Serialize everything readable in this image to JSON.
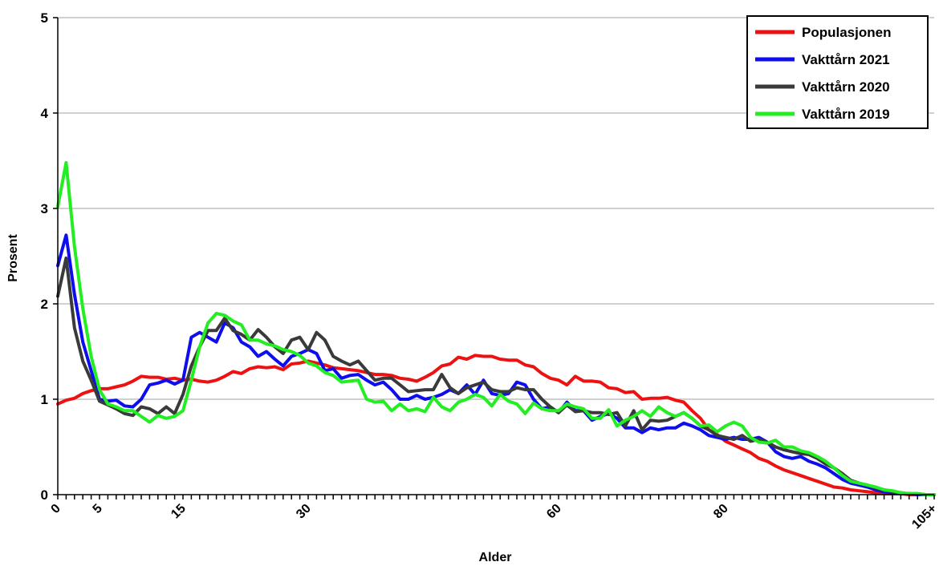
{
  "chart_data": {
    "type": "line",
    "title": "",
    "xlabel": "Alder",
    "ylabel": "Prosent",
    "ylim": [
      0,
      5
    ],
    "yticks": [
      "0",
      "1",
      "2",
      "3",
      "4",
      "5"
    ],
    "xtick_labels": [
      {
        "age": 0,
        "label": "0"
      },
      {
        "age": 5,
        "label": "5"
      },
      {
        "age": 15,
        "label": "15"
      },
      {
        "age": 30,
        "label": "30"
      },
      {
        "age": 60,
        "label": "60"
      },
      {
        "age": 80,
        "label": "80"
      },
      {
        "age": 105,
        "label": "105+"
      }
    ],
    "grid": "horizontal",
    "legend_position": "top-right",
    "x": [
      0,
      1,
      2,
      3,
      4,
      5,
      6,
      7,
      8,
      9,
      10,
      11,
      12,
      13,
      14,
      15,
      16,
      17,
      18,
      19,
      20,
      21,
      22,
      23,
      24,
      25,
      26,
      27,
      28,
      29,
      30,
      31,
      32,
      33,
      34,
      35,
      36,
      37,
      38,
      39,
      40,
      41,
      42,
      43,
      44,
      45,
      46,
      47,
      48,
      49,
      50,
      51,
      52,
      53,
      54,
      55,
      56,
      57,
      58,
      59,
      60,
      61,
      62,
      63,
      64,
      65,
      66,
      67,
      68,
      69,
      70,
      71,
      72,
      73,
      74,
      75,
      76,
      77,
      78,
      79,
      80,
      81,
      82,
      83,
      84,
      85,
      86,
      87,
      88,
      89,
      90,
      91,
      92,
      93,
      94,
      95,
      96,
      97,
      98,
      99,
      100,
      101,
      102,
      103,
      104,
      105
    ],
    "series": [
      {
        "name": "Populasjonen",
        "color": "#ee1111",
        "values": [
          0.95,
          0.99,
          1.01,
          1.06,
          1.09,
          1.11,
          1.11,
          1.13,
          1.15,
          1.19,
          1.24,
          1.23,
          1.23,
          1.21,
          1.22,
          1.2,
          1.21,
          1.19,
          1.18,
          1.2,
          1.24,
          1.29,
          1.27,
          1.32,
          1.34,
          1.33,
          1.34,
          1.31,
          1.37,
          1.38,
          1.4,
          1.38,
          1.36,
          1.33,
          1.32,
          1.31,
          1.3,
          1.28,
          1.26,
          1.26,
          1.25,
          1.22,
          1.21,
          1.19,
          1.23,
          1.28,
          1.35,
          1.37,
          1.44,
          1.42,
          1.46,
          1.45,
          1.45,
          1.42,
          1.41,
          1.41,
          1.36,
          1.34,
          1.27,
          1.22,
          1.2,
          1.15,
          1.24,
          1.19,
          1.19,
          1.18,
          1.12,
          1.11,
          1.07,
          1.08,
          1.0,
          1.01,
          1.01,
          1.02,
          0.99,
          0.97,
          0.88,
          0.8,
          0.68,
          0.63,
          0.56,
          0.52,
          0.48,
          0.44,
          0.38,
          0.35,
          0.3,
          0.26,
          0.23,
          0.2,
          0.17,
          0.14,
          0.11,
          0.08,
          0.07,
          0.05,
          0.04,
          0.03,
          0.02,
          0.01,
          0.01,
          0.01,
          0.0,
          0.0,
          0.0,
          0.0
        ]
      },
      {
        "name": "Vakttårn 2021",
        "color": "#0d0dee",
        "values": [
          2.4,
          2.72,
          2.1,
          1.6,
          1.3,
          1.0,
          0.98,
          0.99,
          0.93,
          0.92,
          1.0,
          1.15,
          1.17,
          1.2,
          1.16,
          1.2,
          1.65,
          1.7,
          1.65,
          1.6,
          1.8,
          1.75,
          1.6,
          1.55,
          1.45,
          1.5,
          1.42,
          1.35,
          1.45,
          1.48,
          1.52,
          1.48,
          1.3,
          1.32,
          1.22,
          1.25,
          1.26,
          1.2,
          1.15,
          1.18,
          1.1,
          1.0,
          1.0,
          1.04,
          1.0,
          1.02,
          1.05,
          1.1,
          1.06,
          1.15,
          1.05,
          1.2,
          1.06,
          1.04,
          1.06,
          1.18,
          1.15,
          1.0,
          0.9,
          0.92,
          0.86,
          0.97,
          0.88,
          0.88,
          0.78,
          0.82,
          0.85,
          0.8,
          0.7,
          0.7,
          0.65,
          0.7,
          0.68,
          0.7,
          0.7,
          0.75,
          0.72,
          0.68,
          0.62,
          0.6,
          0.58,
          0.6,
          0.58,
          0.58,
          0.6,
          0.55,
          0.45,
          0.4,
          0.38,
          0.4,
          0.35,
          0.32,
          0.28,
          0.22,
          0.16,
          0.12,
          0.1,
          0.08,
          0.05,
          0.03,
          0.02,
          0.01,
          0.01,
          0.0,
          0.0,
          0.0
        ]
      },
      {
        "name": "Vakttårn 2020",
        "color": "#3a3a3a",
        "values": [
          2.08,
          2.48,
          1.75,
          1.4,
          1.2,
          0.98,
          0.94,
          0.9,
          0.85,
          0.83,
          0.92,
          0.9,
          0.85,
          0.92,
          0.85,
          1.05,
          1.35,
          1.55,
          1.72,
          1.72,
          1.85,
          1.72,
          1.68,
          1.62,
          1.73,
          1.65,
          1.55,
          1.48,
          1.62,
          1.65,
          1.52,
          1.7,
          1.62,
          1.45,
          1.4,
          1.36,
          1.4,
          1.3,
          1.2,
          1.22,
          1.22,
          1.15,
          1.08,
          1.09,
          1.1,
          1.1,
          1.26,
          1.12,
          1.06,
          1.12,
          1.15,
          1.18,
          1.1,
          1.08,
          1.08,
          1.12,
          1.1,
          1.1,
          1.0,
          0.92,
          0.86,
          0.94,
          0.87,
          0.88,
          0.86,
          0.86,
          0.84,
          0.86,
          0.72,
          0.88,
          0.68,
          0.78,
          0.77,
          0.78,
          0.82,
          0.86,
          0.8,
          0.72,
          0.68,
          0.62,
          0.6,
          0.58,
          0.62,
          0.56,
          0.58,
          0.55,
          0.5,
          0.47,
          0.45,
          0.43,
          0.42,
          0.38,
          0.32,
          0.28,
          0.22,
          0.15,
          0.12,
          0.1,
          0.07,
          0.05,
          0.03,
          0.02,
          0.01,
          0.01,
          0.0,
          0.0
        ]
      },
      {
        "name": "Vakttårn 2019",
        "color": "#22ee22",
        "values": [
          3.02,
          3.48,
          2.6,
          1.95,
          1.45,
          1.1,
          0.95,
          0.92,
          0.88,
          0.88,
          0.82,
          0.76,
          0.83,
          0.8,
          0.82,
          0.88,
          1.2,
          1.55,
          1.8,
          1.9,
          1.88,
          1.82,
          1.78,
          1.62,
          1.62,
          1.58,
          1.56,
          1.52,
          1.5,
          1.46,
          1.38,
          1.35,
          1.28,
          1.25,
          1.18,
          1.19,
          1.2,
          1.0,
          0.97,
          0.98,
          0.88,
          0.95,
          0.88,
          0.9,
          0.87,
          1.02,
          0.92,
          0.88,
          0.97,
          1.0,
          1.05,
          1.02,
          0.93,
          1.05,
          0.98,
          0.95,
          0.85,
          0.96,
          0.9,
          0.88,
          0.88,
          0.95,
          0.92,
          0.9,
          0.8,
          0.8,
          0.89,
          0.72,
          0.78,
          0.82,
          0.88,
          0.82,
          0.92,
          0.86,
          0.82,
          0.86,
          0.8,
          0.72,
          0.73,
          0.66,
          0.72,
          0.76,
          0.72,
          0.6,
          0.55,
          0.54,
          0.57,
          0.5,
          0.5,
          0.46,
          0.44,
          0.4,
          0.35,
          0.28,
          0.2,
          0.14,
          0.12,
          0.1,
          0.08,
          0.05,
          0.04,
          0.02,
          0.01,
          0.01,
          0.0,
          0.0
        ]
      }
    ]
  }
}
